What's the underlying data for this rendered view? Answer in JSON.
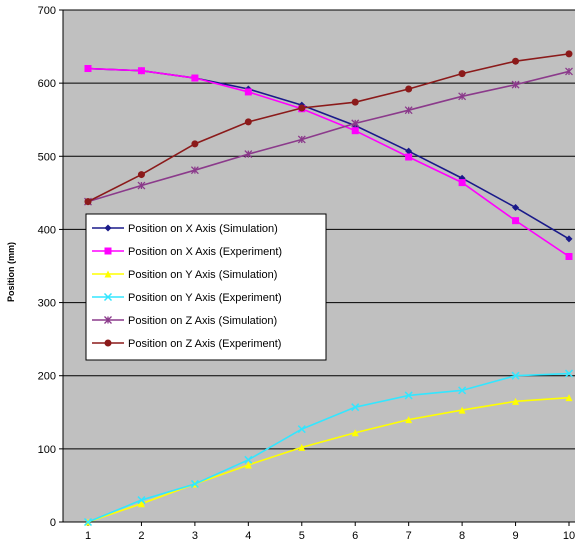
{
  "chart_data": {
    "type": "line",
    "title": "",
    "xlabel": "",
    "ylabel": "Position (mm)",
    "x": [
      1,
      2,
      3,
      4,
      5,
      6,
      7,
      8,
      9,
      10
    ],
    "ylim": [
      0,
      700
    ],
    "yticks": [
      0,
      100,
      200,
      300,
      400,
      500,
      600,
      700
    ],
    "grid": "horizontal",
    "legend_position": "center-left",
    "series": [
      {
        "name": "Position on X Axis (Simulation)",
        "color": "#1a1a8a",
        "marker": "diamond",
        "values": [
          620,
          617,
          607,
          592,
          570,
          542,
          507,
          470,
          430,
          387
        ]
      },
      {
        "name": "Position on X Axis (Experiment)",
        "color": "#ff00ff",
        "marker": "square",
        "values": [
          620,
          617,
          607,
          588,
          565,
          535,
          499,
          464,
          412,
          363
        ]
      },
      {
        "name": "Position on Y Axis (Simulation)",
        "color": "#ffff00",
        "marker": "triangle",
        "values": [
          0,
          25,
          52,
          78,
          102,
          122,
          140,
          153,
          165,
          170
        ]
      },
      {
        "name": "Position on Y Axis (Experiment)",
        "color": "#33e6ff",
        "marker": "x",
        "values": [
          0,
          30,
          52,
          85,
          127,
          157,
          173,
          180,
          200,
          203
        ]
      },
      {
        "name": "Position on Z Axis (Simulation)",
        "color": "#8b3a8b",
        "marker": "star",
        "values": [
          438,
          460,
          481,
          503,
          523,
          545,
          563,
          582,
          598,
          616
        ]
      },
      {
        "name": "Position on Z Axis (Experiment)",
        "color": "#8b1a1a",
        "marker": "circle",
        "values": [
          438,
          475,
          517,
          547,
          566,
          574,
          592,
          613,
          630,
          640
        ]
      }
    ]
  }
}
